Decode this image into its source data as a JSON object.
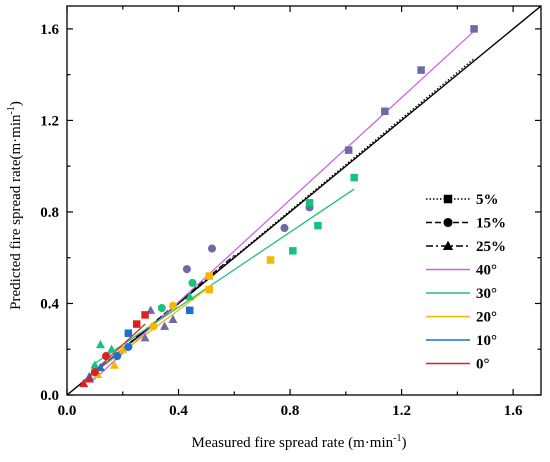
{
  "chart_data": {
    "type": "scatter",
    "xlabel": "Measured fire spread rate (m·min",
    "xlabel_sup": "-1",
    "xlabel_end": ")",
    "ylabel": "Predicted fire spread rate(m·min",
    "ylabel_sup": "-1",
    "ylabel_end": ")",
    "xlim": [
      0,
      1.7
    ],
    "ylim": [
      0,
      1.7
    ],
    "xticks": [
      0.0,
      0.4,
      0.8,
      1.2,
      1.6
    ],
    "xtick_labels": [
      "0.0",
      "0.4",
      "0.8",
      "1.2",
      "1.6"
    ],
    "yticks": [
      0.0,
      0.4,
      0.8,
      1.2,
      1.6
    ],
    "ytick_labels": [
      "0.0",
      "0.4",
      "0.8",
      "1.2",
      "1.6"
    ],
    "grid": false,
    "legend_position": "right",
    "reference_line": {
      "x": [
        0,
        1.7
      ],
      "y": [
        0,
        1.7
      ],
      "color": "#000000"
    },
    "legend": [
      {
        "label": "5%",
        "style": "dotted",
        "marker": "square",
        "color": "#000000"
      },
      {
        "label": "15%",
        "style": "dashed",
        "marker": "circle",
        "color": "#000000"
      },
      {
        "label": "25%",
        "style": "dashdot",
        "marker": "triangle",
        "color": "#000000"
      },
      {
        "label": "40°",
        "style": "solid",
        "marker": "none",
        "color": "#cc66dd"
      },
      {
        "label": "30°",
        "style": "solid",
        "marker": "none",
        "color": "#19c27a"
      },
      {
        "label": "20°",
        "style": "solid",
        "marker": "none",
        "color": "#f5b800"
      },
      {
        "label": "10°",
        "style": "solid",
        "marker": "none",
        "color": "#1f6fd1"
      },
      {
        "label": "0°",
        "style": "solid",
        "marker": "none",
        "color": "#e02020"
      }
    ],
    "fit_lines": [
      {
        "series": "5%",
        "style": "dotted",
        "color": "#000000",
        "x": [
          0.05,
          1.46
        ],
        "y": [
          0.05,
          1.47
        ]
      },
      {
        "series": "15%",
        "style": "dashed",
        "color": "#000000",
        "x": [
          0.05,
          0.6
        ],
        "y": [
          0.05,
          0.61
        ]
      },
      {
        "series": "25%",
        "style": "dashdot",
        "color": "#000000",
        "x": [
          0.05,
          0.5
        ],
        "y": [
          0.05,
          0.5
        ]
      },
      {
        "series": "40°",
        "style": "solid",
        "color": "#cc66dd",
        "x": [
          0.09,
          1.46
        ],
        "y": [
          0.06,
          1.59
        ]
      },
      {
        "series": "30°",
        "style": "solid",
        "color": "#19c27a",
        "x": [
          0.09,
          1.03
        ],
        "y": [
          0.13,
          0.9
        ]
      },
      {
        "series": "20°",
        "style": "solid",
        "color": "#f5b800",
        "x": [
          0.09,
          0.52
        ],
        "y": [
          0.09,
          0.48
        ]
      },
      {
        "series": "10°",
        "style": "solid",
        "color": "#1f6fd1",
        "x": [
          0.06,
          0.23
        ],
        "y": [
          0.06,
          0.23
        ]
      },
      {
        "series": "0°",
        "style": "solid",
        "color": "#e02020",
        "x": [
          0.05,
          0.28
        ],
        "y": [
          0.05,
          0.31
        ]
      }
    ],
    "series": [
      {
        "color": "#6e6aa8",
        "points": [
          {
            "x": 1.46,
            "y": 1.6,
            "marker": "square"
          },
          {
            "x": 1.27,
            "y": 1.42,
            "marker": "square"
          },
          {
            "x": 1.14,
            "y": 1.24,
            "marker": "square"
          },
          {
            "x": 1.01,
            "y": 1.07,
            "marker": "square"
          },
          {
            "x": 0.87,
            "y": 0.82,
            "marker": "circle"
          },
          {
            "x": 0.78,
            "y": 0.73,
            "marker": "circle"
          },
          {
            "x": 0.52,
            "y": 0.64,
            "marker": "circle"
          },
          {
            "x": 0.43,
            "y": 0.55,
            "marker": "circle"
          },
          {
            "x": 0.35,
            "y": 0.3,
            "marker": "triangle"
          },
          {
            "x": 0.3,
            "y": 0.37,
            "marker": "triangle"
          },
          {
            "x": 0.28,
            "y": 0.25,
            "marker": "triangle"
          },
          {
            "x": 0.38,
            "y": 0.33,
            "marker": "triangle"
          }
        ]
      },
      {
        "color": "#19c27a",
        "points": [
          {
            "x": 1.03,
            "y": 0.95,
            "marker": "square"
          },
          {
            "x": 0.9,
            "y": 0.74,
            "marker": "square"
          },
          {
            "x": 0.87,
            "y": 0.84,
            "marker": "square"
          },
          {
            "x": 0.81,
            "y": 0.63,
            "marker": "square"
          },
          {
            "x": 0.45,
            "y": 0.49,
            "marker": "circle"
          },
          {
            "x": 0.34,
            "y": 0.38,
            "marker": "circle"
          },
          {
            "x": 0.44,
            "y": 0.43,
            "marker": "triangle"
          },
          {
            "x": 0.12,
            "y": 0.22,
            "marker": "triangle"
          },
          {
            "x": 0.16,
            "y": 0.2,
            "marker": "triangle"
          },
          {
            "x": 0.1,
            "y": 0.13,
            "marker": "triangle"
          }
        ]
      },
      {
        "color": "#f5b800",
        "points": [
          {
            "x": 0.73,
            "y": 0.59,
            "marker": "square"
          },
          {
            "x": 0.51,
            "y": 0.52,
            "marker": "square"
          },
          {
            "x": 0.51,
            "y": 0.46,
            "marker": "square"
          },
          {
            "x": 0.38,
            "y": 0.39,
            "marker": "circle"
          },
          {
            "x": 0.31,
            "y": 0.3,
            "marker": "circle"
          },
          {
            "x": 0.2,
            "y": 0.2,
            "marker": "triangle"
          },
          {
            "x": 0.17,
            "y": 0.13,
            "marker": "triangle"
          },
          {
            "x": 0.11,
            "y": 0.09,
            "marker": "triangle"
          }
        ]
      },
      {
        "color": "#1f6fd1",
        "points": [
          {
            "x": 0.44,
            "y": 0.37,
            "marker": "square"
          },
          {
            "x": 0.22,
            "y": 0.27,
            "marker": "square"
          },
          {
            "x": 0.22,
            "y": 0.21,
            "marker": "circle"
          },
          {
            "x": 0.18,
            "y": 0.17,
            "marker": "circle"
          },
          {
            "x": 0.12,
            "y": 0.12,
            "marker": "triangle"
          },
          {
            "x": 0.08,
            "y": 0.08,
            "marker": "triangle"
          }
        ]
      },
      {
        "color": "#e02020",
        "points": [
          {
            "x": 0.28,
            "y": 0.35,
            "marker": "square"
          },
          {
            "x": 0.25,
            "y": 0.31,
            "marker": "square"
          },
          {
            "x": 0.14,
            "y": 0.17,
            "marker": "circle"
          },
          {
            "x": 0.1,
            "y": 0.1,
            "marker": "circle"
          },
          {
            "x": 0.08,
            "y": 0.07,
            "marker": "triangle"
          },
          {
            "x": 0.06,
            "y": 0.05,
            "marker": "triangle"
          }
        ]
      }
    ]
  }
}
